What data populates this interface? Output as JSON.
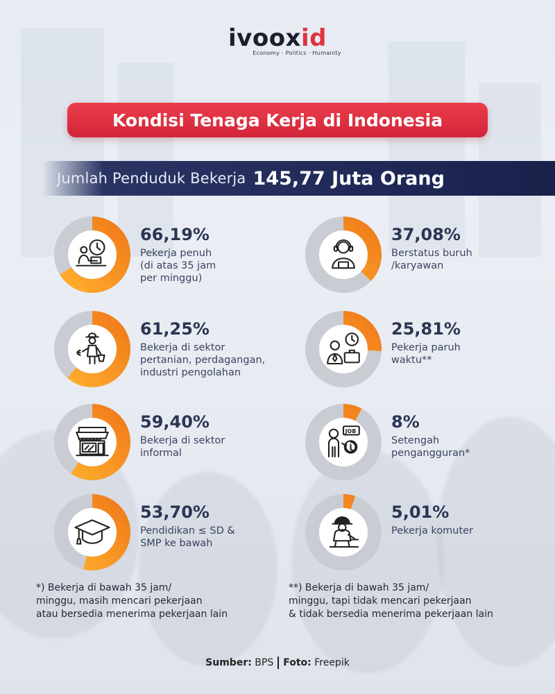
{
  "brand": {
    "name_dark": "ivoox",
    "name_red": "id",
    "tagline": "Economy · Politics · Humanity"
  },
  "title": "Kondisi Tenaga Kerja di Indonesia",
  "banner": {
    "label": "Jumlah Penduduk Bekerja",
    "value": "145,77 Juta Orang"
  },
  "colors": {
    "accent": "#f07a1a",
    "track": "#c9ccd2",
    "title_bg": "#dc2f41",
    "banner_bg": "#1f2756"
  },
  "chart_data": {
    "type": "pie",
    "title": "",
    "series": [
      {
        "pct_label": "66,19%",
        "value": 66.19,
        "label_lines": [
          "Pekerja penuh",
          "(di atas 35 jam",
          "per minggu)"
        ],
        "icon": "worker-clock-icon"
      },
      {
        "pct_label": "37,08%",
        "value": 37.08,
        "label_lines": [
          "Berstatus buruh",
          "/karyawan"
        ],
        "icon": "employee-headset-icon"
      },
      {
        "pct_label": "61,25%",
        "value": 61.25,
        "label_lines": [
          "Bekerja di sektor",
          "pertanian, perdagangan,",
          "industri pengolahan"
        ],
        "icon": "farmer-icon"
      },
      {
        "pct_label": "25,81%",
        "value": 25.81,
        "label_lines": [
          "Pekerja paruh",
          "waktu**"
        ],
        "icon": "part-time-worker-icon"
      },
      {
        "pct_label": "59,40%",
        "value": 59.4,
        "label_lines": [
          "Bekerja di sektor",
          "informal"
        ],
        "icon": "shop-icon"
      },
      {
        "pct_label": "8%",
        "value": 8,
        "label_lines": [
          "Setengah",
          "pengangguran*"
        ],
        "icon": "job-seeker-icon"
      },
      {
        "pct_label": "53,70%",
        "value": 53.7,
        "label_lines": [
          "Pendidikan ≤ SD &",
          "SMP ke bawah"
        ],
        "icon": "graduation-cap-icon"
      },
      {
        "pct_label": "5,01%",
        "value": 5.01,
        "label_lines": [
          "Pekerja komuter"
        ],
        "icon": "commuter-worker-icon"
      }
    ]
  },
  "footnotes": {
    "left": [
      "*) Bekerja di bawah 35 jam/",
      "minggu, masih mencari pekerjaan",
      "atau bersedia menerima pekerjaan lain"
    ],
    "right": [
      "**) Bekerja di bawah 35 jam/",
      "minggu, tapi tidak mencari pekerjaan",
      "& tidak bersedia menerima pekerjaan lain"
    ]
  },
  "source": {
    "source_label": "Sumber:",
    "source_value": "BPS",
    "photo_label": "Foto:",
    "photo_value": "Freepik"
  }
}
